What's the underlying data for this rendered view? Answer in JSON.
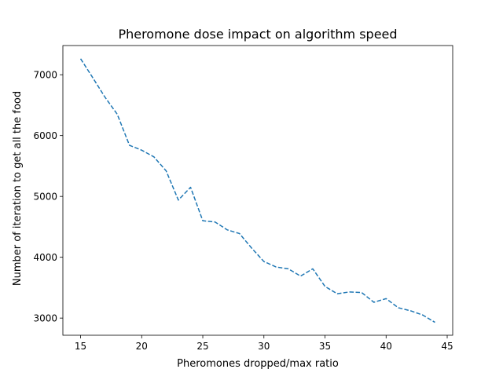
{
  "chart_data": {
    "type": "line",
    "title": "Pheromone dose impact on algorithm speed",
    "xlabel": "Pheromones dropped/max ratio",
    "ylabel": "Number of iteration to get all the food",
    "xlim": [
      13.55,
      45.45
    ],
    "ylim": [
      2718,
      7480
    ],
    "xticks": [
      15,
      20,
      25,
      30,
      35,
      40,
      45
    ],
    "yticks": [
      3000,
      4000,
      5000,
      6000,
      7000
    ],
    "grid": false,
    "line_style": "dashed",
    "series": [
      {
        "color": "#1f77b4",
        "x": [
          15,
          16,
          17,
          18,
          19,
          20,
          21,
          22,
          23,
          24,
          25,
          26,
          27,
          28,
          29,
          30,
          31,
          32,
          33,
          34,
          35,
          36,
          37,
          38,
          39,
          40,
          41,
          42,
          43,
          44
        ],
        "y": [
          7263,
          6950,
          6630,
          6350,
          5840,
          5760,
          5650,
          5420,
          4940,
          5150,
          4600,
          4580,
          4450,
          4390,
          4150,
          3930,
          3840,
          3810,
          3690,
          3810,
          3520,
          3400,
          3430,
          3420,
          3260,
          3320,
          3170,
          3120,
          3050,
          2930
        ]
      }
    ]
  }
}
